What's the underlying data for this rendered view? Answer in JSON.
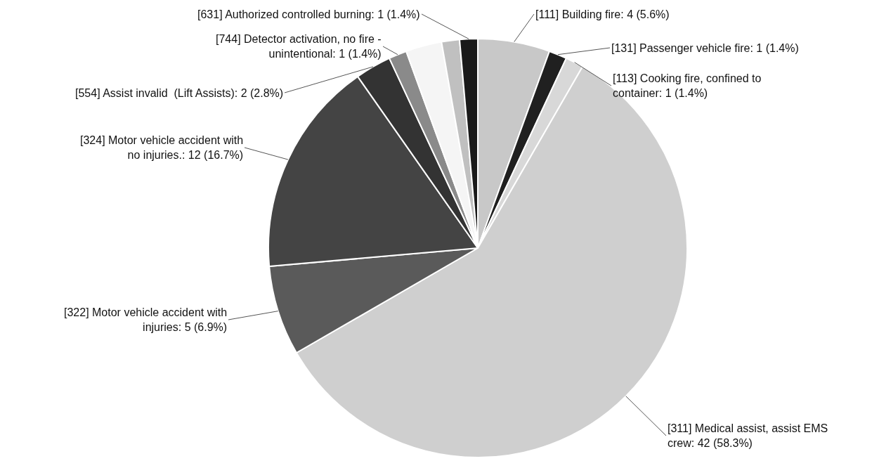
{
  "chart_data": {
    "type": "pie",
    "categories": [
      "[111] Building fire",
      "[131] Passenger vehicle fire",
      "[113] Cooking fire, confined to container",
      "[311] Medical assist, assist EMS crew",
      "[322] Motor vehicle accident with injuries",
      "[324] Motor vehicle accident with no injuries.",
      "[554] Assist invalid  (Lift Assists)",
      "[744] Detector activation, no fire - unintentional",
      null,
      null,
      "[631] Authorized controlled burning"
    ],
    "values": [
      4,
      1,
      1,
      42,
      5,
      12,
      2,
      1,
      2,
      1,
      1
    ],
    "value_labels": [
      "4 (5.6%)",
      "1 (1.4%)",
      "1 (1.4%)",
      "42 (58.3%)",
      "5 (6.9%)",
      "12 (16.7%)",
      "2 (2.8%)",
      "1 (1.4%)",
      null,
      null,
      "1 (1.4%)"
    ],
    "colors": [
      "#c8c8c8",
      "#202020",
      "#d8d8d8",
      "#cfcfcf",
      "#5a5a5a",
      "#444444",
      "#333333",
      "#8a8a8a",
      "#f5f5f5",
      "#c0c0c0",
      "#1a1a1a"
    ],
    "legend": false
  }
}
